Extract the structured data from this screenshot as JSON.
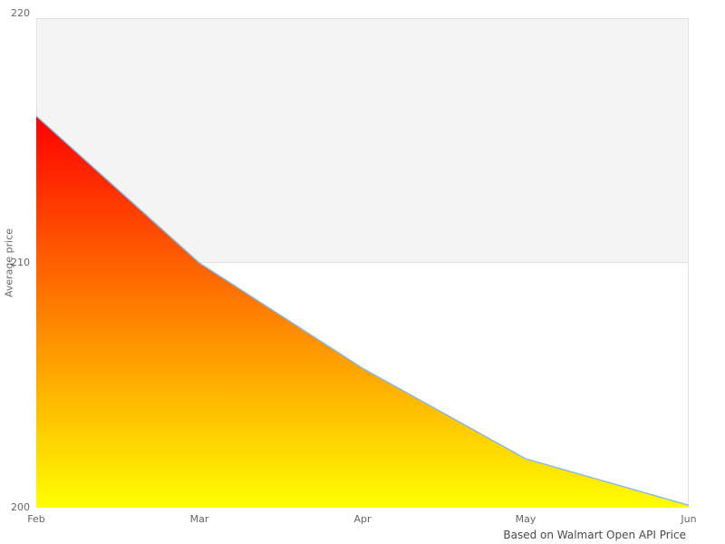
{
  "chart_data": {
    "type": "area",
    "categories": [
      "Feb",
      "Mar",
      "Apr",
      "May",
      "Jun"
    ],
    "values": [
      216.0,
      210.0,
      205.7,
      202.0,
      200.1
    ],
    "title": "",
    "xlabel": "",
    "ylabel": "Average price",
    "ylim": [
      200,
      220
    ],
    "yticks": [
      200,
      210,
      220
    ],
    "ytick_labels": [
      "220",
      "210",
      "200"
    ],
    "caption": "Based on Walmart Open API Price",
    "legend": "off",
    "grid": "alternating-band",
    "band": {
      "from": 210,
      "to": 220,
      "color": "#f4f4f4",
      "border_color": "#e0e0e0"
    },
    "colors": {
      "gradient_top": "#ff0000",
      "gradient_bottom": "#ffff00",
      "line": "#85b8e8",
      "label_text": "#666666",
      "caption_text": "#4a4a4a"
    }
  }
}
